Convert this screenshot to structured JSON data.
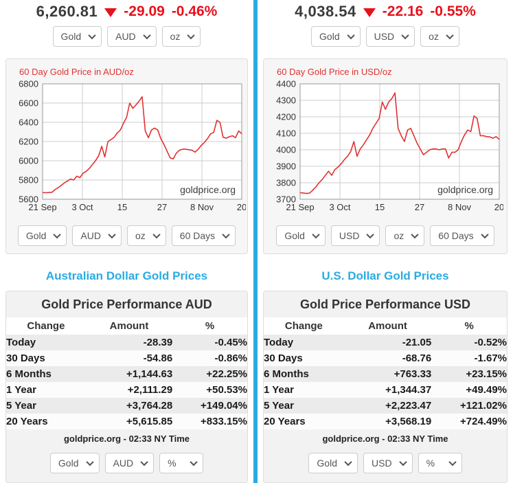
{
  "divider_color": "#29abe2",
  "aud": {
    "price": "6,260.81",
    "change": "-29.09",
    "change_pct": "-0.46%",
    "selects_top": [
      "Gold",
      "AUD",
      "oz"
    ],
    "selects_chart": [
      "Gold",
      "AUD",
      "oz",
      "60 Days"
    ],
    "heading": "Australian Dollar Gold Prices",
    "table": {
      "title": "Gold Price Performance AUD",
      "headers": [
        "Change",
        "Amount",
        "%"
      ],
      "rows": [
        {
          "label": "Today",
          "amount": "-28.39",
          "pct": "-0.45%"
        },
        {
          "label": "30 Days",
          "amount": "-54.86",
          "pct": "-0.86%"
        },
        {
          "label": "6 Months",
          "amount": "+1,144.63",
          "pct": "+22.25%"
        },
        {
          "label": "1 Year",
          "amount": "+2,111.29",
          "pct": "+50.53%"
        },
        {
          "label": "5 Year",
          "amount": "+3,764.28",
          "pct": "+149.04%"
        },
        {
          "label": "20 Years",
          "amount": "+5,615.85",
          "pct": "+833.15%"
        }
      ],
      "footer": "goldprice.org - 02:33 NY Time"
    },
    "selects_bottom": [
      "Gold",
      "AUD",
      "%"
    ]
  },
  "usd": {
    "price": "4,038.54",
    "change": "-22.16",
    "change_pct": "-0.55%",
    "selects_top": [
      "Gold",
      "USD",
      "oz"
    ],
    "selects_chart": [
      "Gold",
      "USD",
      "oz",
      "60 Days"
    ],
    "heading": "U.S. Dollar Gold Prices",
    "table": {
      "title": "Gold Price Performance USD",
      "headers": [
        "Change",
        "Amount",
        "%"
      ],
      "rows": [
        {
          "label": "Today",
          "amount": "-21.05",
          "pct": "-0.52%"
        },
        {
          "label": "30 Days",
          "amount": "-68.76",
          "pct": "-1.67%"
        },
        {
          "label": "6 Months",
          "amount": "+763.33",
          "pct": "+23.15%"
        },
        {
          "label": "1 Year",
          "amount": "+1,344.37",
          "pct": "+49.49%"
        },
        {
          "label": "5 Year",
          "amount": "+2,223.47",
          "pct": "+121.02%"
        },
        {
          "label": "20 Years",
          "amount": "+3,568.19",
          "pct": "+724.49%"
        }
      ],
      "footer": "goldprice.org - 02:33 NY Time"
    },
    "selects_bottom": [
      "Gold",
      "USD",
      "%"
    ]
  },
  "chart_data": [
    {
      "type": "line",
      "title": "60 Day Gold Price in AUD/oz",
      "watermark": "goldprice.org",
      "x_ticks": [
        "21 Sep",
        "3 Oct",
        "15",
        "27",
        "8 Nov",
        "20"
      ],
      "ylim": [
        5600,
        6800
      ],
      "y_ticks": [
        6800,
        6600,
        6400,
        6200,
        6000,
        5800,
        5600
      ],
      "line_color": "#e03131",
      "grid": true,
      "values": [
        5670,
        5668,
        5670,
        5672,
        5700,
        5720,
        5745,
        5770,
        5790,
        5810,
        5800,
        5840,
        5825,
        5870,
        5890,
        5920,
        5960,
        6000,
        6050,
        6150,
        6040,
        6200,
        6220,
        6245,
        6290,
        6320,
        6390,
        6450,
        6600,
        6545,
        6580,
        6620,
        6665,
        6310,
        6240,
        6320,
        6340,
        6320,
        6230,
        6170,
        6100,
        6030,
        6020,
        6080,
        6110,
        6120,
        6120,
        6115,
        6110,
        6090,
        6120,
        6160,
        6190,
        6230,
        6280,
        6295,
        6420,
        6400,
        6245,
        6235,
        6250,
        6260,
        6240,
        6310,
        6280
      ]
    },
    {
      "type": "line",
      "title": "60 Day Gold Price in USD/oz",
      "watermark": "goldprice.org",
      "x_ticks": [
        "21 Sep",
        "3 Oct",
        "15",
        "27",
        "8 Nov",
        "20"
      ],
      "ylim": [
        3700,
        4400
      ],
      "y_ticks": [
        4400,
        4300,
        4200,
        4100,
        4000,
        3900,
        3800,
        3700
      ],
      "line_color": "#e03131",
      "grid": true,
      "values": [
        3740,
        3738,
        3735,
        3737,
        3755,
        3775,
        3800,
        3820,
        3845,
        3870,
        3845,
        3880,
        3895,
        3915,
        3940,
        3960,
        3990,
        4050,
        3960,
        4005,
        4030,
        4060,
        4090,
        4130,
        4160,
        4190,
        4290,
        4245,
        4290,
        4310,
        4345,
        4130,
        4085,
        4050,
        4120,
        4130,
        4085,
        4040,
        4005,
        3970,
        3985,
        4000,
        4005,
        4005,
        4000,
        4005,
        4005,
        3950,
        3985,
        3985,
        4000,
        4050,
        4090,
        4120,
        4110,
        4205,
        4190,
        4085,
        4085,
        4080,
        4078,
        4070,
        4080,
        4063
      ]
    }
  ]
}
